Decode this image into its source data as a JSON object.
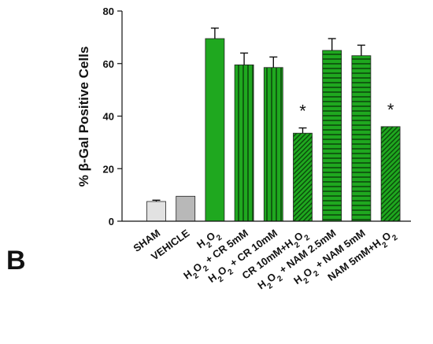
{
  "panel_label": "B",
  "chart_data": {
    "type": "bar",
    "title": "",
    "xlabel": "",
    "ylabel": "% β-Gal Positive Cells",
    "ylim": [
      0,
      80
    ],
    "yticks": [
      0,
      20,
      40,
      60,
      80
    ],
    "grid": false,
    "legend": "none",
    "categories": [
      "SHAM",
      "VEHICLE",
      "H2O2",
      "H2O2 + CR 5mM",
      "H2O2 + CR 10mM",
      "CR 10mM+H2O2",
      "H2O2 + NAM 2.5mM",
      "H2O2 + NAM 5mM",
      "NAM 5mM+H2O2"
    ],
    "values": [
      7.5,
      9.5,
      69.5,
      59.5,
      58.5,
      33.5,
      65,
      63,
      36
    ],
    "errors": [
      0.5,
      0,
      4,
      4.5,
      4,
      2,
      4.5,
      4,
      0
    ],
    "significance": [
      "",
      "",
      "",
      "",
      "",
      "*",
      "",
      "",
      "*"
    ],
    "colors": {
      "sham": "#e2e2e2",
      "vehicle": "#b8b8b8",
      "treatment": "#1fa81f",
      "pattern_line": "#0b4a0b"
    },
    "patterns": [
      "solid",
      "solid",
      "solid",
      "vertical",
      "vertical",
      "diagonal",
      "horizontal",
      "horizontal",
      "diagonal"
    ]
  }
}
